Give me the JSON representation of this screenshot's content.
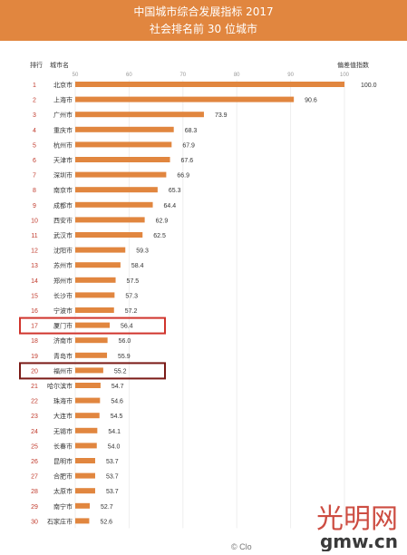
{
  "header": {
    "title": "中国城市综合发展指标 2017",
    "subtitle": "社会排名前 30 位城市"
  },
  "chart_data": {
    "type": "bar",
    "orientation": "horizontal",
    "title": "中国城市综合发展指标 2017",
    "subtitle": "社会排名前 30 位城市",
    "column_headers": {
      "rank": "排行",
      "city": "城市名",
      "value": "偏差值指数"
    },
    "xlim": [
      50,
      100
    ],
    "xticks": [
      50,
      60,
      70,
      80,
      90,
      100
    ],
    "grid": true,
    "categories": [
      "北京市",
      "上海市",
      "广州市",
      "重庆市",
      "杭州市",
      "天津市",
      "深圳市",
      "南京市",
      "成都市",
      "西安市",
      "武汉市",
      "沈阳市",
      "苏州市",
      "郑州市",
      "长沙市",
      "宁波市",
      "厦门市",
      "济南市",
      "青岛市",
      "福州市",
      "哈尔滨市",
      "珠海市",
      "大连市",
      "无锡市",
      "长春市",
      "昆明市",
      "合肥市",
      "太原市",
      "南宁市",
      "石家庄市"
    ],
    "ranks": [
      "1",
      "2",
      "3",
      "4",
      "5",
      "6",
      "7",
      "8",
      "9",
      "10",
      "11",
      "12",
      "13",
      "14",
      "15",
      "16",
      "17",
      "18",
      "19",
      "20",
      "21",
      "22",
      "23",
      "24",
      "25",
      "26",
      "27",
      "28",
      "29",
      "30"
    ],
    "values": [
      100.0,
      90.6,
      73.9,
      68.3,
      67.9,
      67.6,
      66.9,
      65.3,
      64.4,
      62.9,
      62.5,
      59.3,
      58.4,
      57.5,
      57.3,
      57.2,
      56.4,
      56.0,
      55.9,
      55.2,
      54.7,
      54.6,
      54.5,
      54.1,
      54.0,
      53.7,
      53.7,
      53.7,
      52.7,
      52.6
    ],
    "value_labels": [
      "100.0",
      "90.6",
      "73.9",
      "68.3",
      "67.9",
      "67.6",
      "66.9",
      "65.3",
      "64.4",
      "62.9",
      "62.5",
      "59.3",
      "58.4",
      "57.5",
      "57.3",
      "57.2",
      "56.4",
      "56.0",
      "55.9",
      "55.2",
      "54.7",
      "54.6",
      "54.5",
      "54.1",
      "54.0",
      "53.7",
      "53.7",
      "53.7",
      "52.7",
      "52.6"
    ],
    "highlighted": [
      {
        "rank": "17",
        "color": "#d0342c"
      },
      {
        "rank": "20",
        "color": "#7a1a16"
      }
    ]
  },
  "colors": {
    "banner": "#e1863f",
    "bar": "#e1863f",
    "rank_text": "#c0392b",
    "gridline": "#eeeeee",
    "watermark": "#c83a2e"
  },
  "watermark": {
    "chinese": "光明网",
    "domain": "gmw.cn",
    "credit": "© Clo"
  }
}
